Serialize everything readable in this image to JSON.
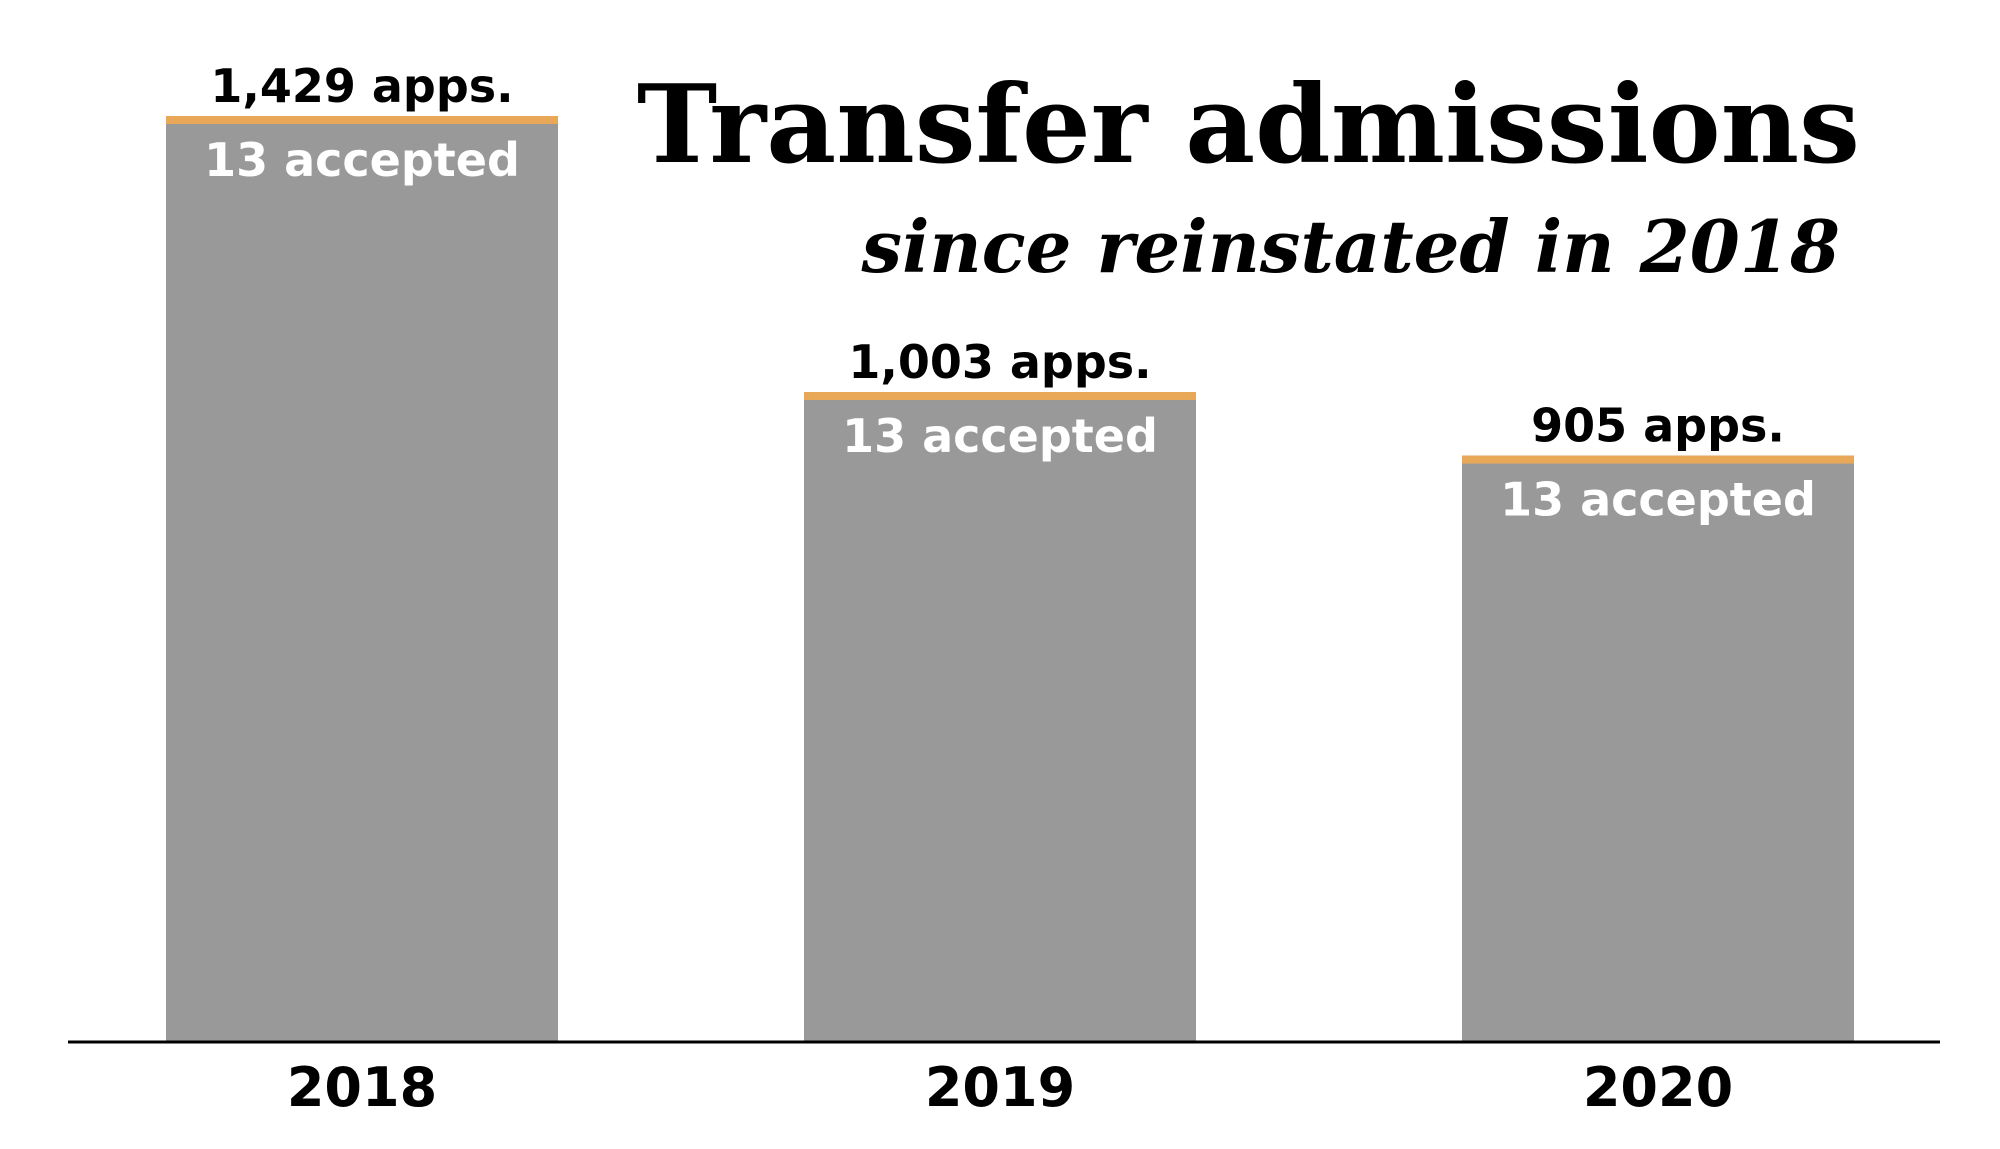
{
  "chart_data": {
    "type": "bar",
    "title": "Transfer admissions",
    "subtitle": "since reinstated in 2018",
    "categories": [
      "2018",
      "2019",
      "2020"
    ],
    "series": [
      {
        "name": "applications",
        "values": [
          1429,
          1003,
          905
        ]
      },
      {
        "name": "accepted",
        "values": [
          13,
          13,
          13
        ]
      }
    ],
    "app_labels": [
      "1,429 apps.",
      "1,003 apps.",
      "905 apps."
    ],
    "accept_labels": [
      "13 accepted",
      "13 accepted",
      "13 accepted"
    ],
    "ylim": [
      0,
      1429
    ],
    "grid": false,
    "colors": {
      "bar": "#999999",
      "accent": "#E9A857",
      "axis": "#000000"
    }
  }
}
